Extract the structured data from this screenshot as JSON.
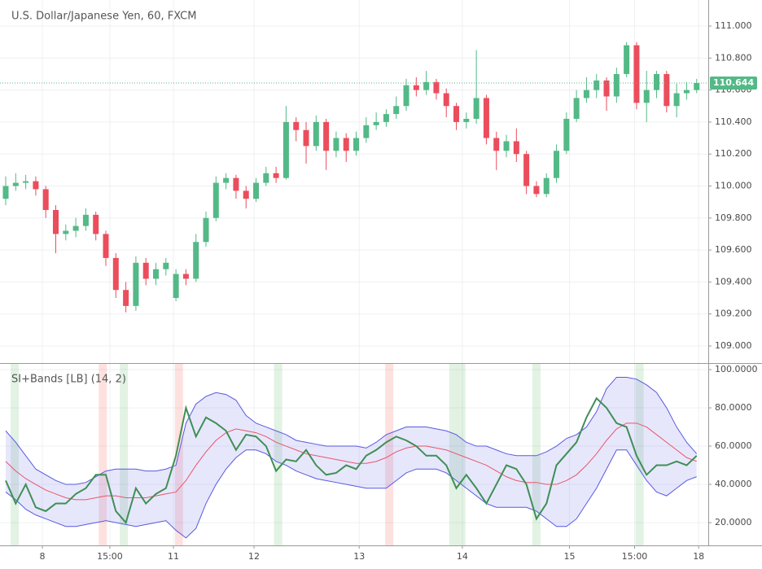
{
  "chart_data": [
    {
      "type": "candlestick",
      "title": "U.S. Dollar/Japanese Yen, 60, FXCM",
      "up_color": "#53b987",
      "down_color": "#eb4d5c",
      "ylim": [
        108.893,
        111.163
      ],
      "yticks": [
        {
          "value": 109,
          "label": "109.000"
        },
        {
          "value": 109.2,
          "label": "109.200"
        },
        {
          "value": 109.4,
          "label": "109.400"
        },
        {
          "value": 109.6,
          "label": "109.600"
        },
        {
          "value": 109.8,
          "label": "109.800"
        },
        {
          "value": 110,
          "label": "110.000"
        },
        {
          "value": 110.2,
          "label": "110.200"
        },
        {
          "value": 110.4,
          "label": "110.400"
        },
        {
          "value": 110.6,
          "label": "110.600"
        },
        {
          "value": 110.8,
          "label": "110.800"
        },
        {
          "value": 111,
          "label": "111.000"
        }
      ],
      "grid": true,
      "last": {
        "value": 110.644,
        "label": "110.644",
        "color": "#53b987"
      },
      "open": [
        109.92,
        110.0,
        110.02,
        110.03,
        109.98,
        109.85,
        109.7,
        109.72,
        109.75,
        109.82,
        109.7,
        109.55,
        109.35,
        109.25,
        109.52,
        109.42,
        109.48,
        109.3,
        109.45,
        109.42,
        109.65,
        109.8,
        110.02,
        110.05,
        109.97,
        109.92,
        110.02,
        110.08,
        110.05,
        110.4,
        110.35,
        110.25,
        110.4,
        110.22,
        110.3,
        110.22,
        110.3,
        110.38,
        110.4,
        110.45,
        110.5,
        110.63,
        110.6,
        110.65,
        110.58,
        110.5,
        110.4,
        110.42,
        110.55,
        110.3,
        110.22,
        110.28,
        110.2,
        110.0,
        109.95,
        110.05,
        110.22,
        110.42,
        110.55,
        110.6,
        110.66,
        110.56,
        110.7,
        110.88,
        110.52,
        110.6,
        110.7,
        110.5,
        110.58,
        110.6
      ],
      "high": [
        110.06,
        110.08,
        110.07,
        110.06,
        110.0,
        109.88,
        109.76,
        109.8,
        109.86,
        109.84,
        109.72,
        109.58,
        109.4,
        109.56,
        109.55,
        109.52,
        109.55,
        109.48,
        109.48,
        109.7,
        109.84,
        110.06,
        110.08,
        110.07,
        110.0,
        110.05,
        110.12,
        110.12,
        110.5,
        110.43,
        110.4,
        110.44,
        110.42,
        110.34,
        110.33,
        110.34,
        110.43,
        110.46,
        110.48,
        110.56,
        110.67,
        110.68,
        110.72,
        110.67,
        110.61,
        110.52,
        110.46,
        110.85,
        110.57,
        110.34,
        110.32,
        110.36,
        110.22,
        110.03,
        110.08,
        110.26,
        110.46,
        110.6,
        110.68,
        110.7,
        110.68,
        110.74,
        110.9,
        110.9,
        110.72,
        110.72,
        110.72,
        110.64,
        110.65,
        110.67
      ],
      "low": [
        109.88,
        109.97,
        109.98,
        109.94,
        109.8,
        109.58,
        109.66,
        109.68,
        109.72,
        109.66,
        109.5,
        109.3,
        109.21,
        109.22,
        109.38,
        109.38,
        109.44,
        109.28,
        109.38,
        109.4,
        109.62,
        109.78,
        109.98,
        109.92,
        109.86,
        109.9,
        110.0,
        110.02,
        110.04,
        110.28,
        110.14,
        110.22,
        110.1,
        110.18,
        110.15,
        110.19,
        110.27,
        110.35,
        110.37,
        110.42,
        110.47,
        110.56,
        110.57,
        110.54,
        110.43,
        110.35,
        110.36,
        110.39,
        110.26,
        110.1,
        110.18,
        110.15,
        109.95,
        109.93,
        109.93,
        110.02,
        110.2,
        110.4,
        110.52,
        110.55,
        110.47,
        110.52,
        110.68,
        110.48,
        110.4,
        110.55,
        110.46,
        110.43,
        110.54,
        110.58
      ],
      "close": [
        110.0,
        110.02,
        110.03,
        109.98,
        109.85,
        109.7,
        109.72,
        109.75,
        109.82,
        109.7,
        109.55,
        109.35,
        109.25,
        109.52,
        109.42,
        109.48,
        109.52,
        109.45,
        109.42,
        109.65,
        109.8,
        110.02,
        110.05,
        109.97,
        109.92,
        110.02,
        110.08,
        110.05,
        110.4,
        110.35,
        110.25,
        110.4,
        110.22,
        110.3,
        110.22,
        110.3,
        110.38,
        110.4,
        110.45,
        110.5,
        110.63,
        110.6,
        110.65,
        110.58,
        110.5,
        110.4,
        110.42,
        110.55,
        110.3,
        110.22,
        110.28,
        110.2,
        110.0,
        109.95,
        110.05,
        110.22,
        110.42,
        110.55,
        110.6,
        110.66,
        110.56,
        110.7,
        110.88,
        110.52,
        110.6,
        110.7,
        110.5,
        110.58,
        110.6,
        110.644
      ]
    },
    {
      "type": "bands",
      "title": "SI+Bands [LB] (14, 2)",
      "xlim": [
        -0.57,
        70.16
      ],
      "xticks": [
        {
          "value": 3.66,
          "label": "8"
        },
        {
          "value": 10.4,
          "label": "15:00"
        },
        {
          "value": 16.75,
          "label": "11"
        },
        {
          "value": 24.8,
          "label": "12"
        },
        {
          "value": 35.3,
          "label": "13"
        },
        {
          "value": 45.6,
          "label": "14"
        },
        {
          "value": 56.3,
          "label": "15"
        },
        {
          "value": 62.8,
          "label": "15:00"
        },
        {
          "value": 69.2,
          "label": "18"
        }
      ],
      "ylim": [
        8.1,
        103
      ],
      "yticks": [
        {
          "value": 20,
          "label": "20.0000"
        },
        {
          "value": 40,
          "label": "40.0000"
        },
        {
          "value": 60,
          "label": "60.0000"
        },
        {
          "value": 80,
          "label": "80.0000"
        },
        {
          "value": 100,
          "label": "100.0000"
        }
      ],
      "grid": true,
      "band_fill": "rgba(110,110,235,0.17)",
      "highlights": [
        {
          "x": 0.9,
          "color": "rgba(76,175,80,0.16)"
        },
        {
          "x": 9.7,
          "color": "rgba(244,67,54,0.16)"
        },
        {
          "x": 11.8,
          "color": "rgba(76,175,80,0.16)"
        },
        {
          "x": 17.3,
          "color": "rgba(244,67,54,0.16)"
        },
        {
          "x": 27.2,
          "color": "rgba(76,175,80,0.16)"
        },
        {
          "x": 38.3,
          "color": "rgba(244,67,54,0.16)"
        },
        {
          "x": 44.7,
          "color": "rgba(76,175,80,0.16)"
        },
        {
          "x": 45.5,
          "color": "rgba(76,175,80,0.16)"
        },
        {
          "x": 53,
          "color": "rgba(76,175,80,0.16)"
        },
        {
          "x": 63.3,
          "color": "rgba(76,175,80,0.16)"
        }
      ],
      "series": [
        {
          "color": "#5959e0",
          "values": [
            68,
            62,
            55,
            48,
            45,
            42,
            40,
            40,
            41,
            44,
            47,
            48,
            48,
            48,
            47,
            47,
            48,
            50,
            72,
            82,
            86,
            88,
            87,
            84,
            76,
            72,
            70,
            68,
            66,
            63,
            62,
            61,
            60,
            60,
            60,
            60,
            59,
            62,
            66,
            68,
            70,
            70,
            70,
            69,
            68,
            66,
            62,
            60,
            60,
            58,
            56,
            55,
            55,
            55,
            57,
            60,
            64,
            66,
            70,
            78,
            90,
            96,
            96,
            95,
            92,
            88,
            80,
            70,
            62,
            56
          ]
        },
        {
          "color": "#5959e0",
          "values": [
            36,
            32,
            27,
            24,
            22,
            20,
            18,
            18,
            19,
            20,
            21,
            20,
            19,
            18,
            19,
            20,
            21,
            16,
            12,
            17,
            30,
            40,
            48,
            54,
            58,
            58,
            56,
            52,
            50,
            47,
            45,
            43,
            42,
            41,
            40,
            39,
            38,
            38,
            38,
            42,
            46,
            48,
            48,
            48,
            46,
            42,
            38,
            34,
            30,
            28,
            28,
            28,
            28,
            26,
            22,
            18,
            18,
            22,
            30,
            38,
            48,
            58,
            58,
            50,
            42,
            36,
            34,
            38,
            42,
            44
          ]
        },
        {
          "color": "#e8566a",
          "values": [
            52,
            47,
            43,
            40,
            37,
            35,
            33,
            32,
            32,
            33,
            34,
            34,
            33,
            33,
            33,
            34,
            35,
            36,
            42,
            50,
            57,
            63,
            67,
            69,
            68,
            67,
            65,
            62,
            60,
            58,
            56,
            55,
            54,
            53,
            52,
            51,
            51,
            52,
            54,
            57,
            59,
            60,
            60,
            59,
            58,
            56,
            54,
            52,
            50,
            47,
            44,
            42,
            41,
            41,
            40,
            40,
            42,
            45,
            50,
            56,
            63,
            69,
            72,
            72,
            70,
            66,
            62,
            58,
            54,
            52
          ]
        },
        {
          "color": "#3f8f55",
          "values": [
            42,
            30,
            40,
            28,
            26,
            30,
            30,
            35,
            38,
            45,
            45,
            26,
            20,
            38,
            30,
            35,
            38,
            55,
            80,
            65,
            75,
            72,
            68,
            58,
            66,
            65,
            60,
            47,
            53,
            52,
            58,
            50,
            45,
            46,
            50,
            48,
            55,
            58,
            62,
            65,
            63,
            60,
            55,
            55,
            50,
            38,
            45,
            38,
            30,
            40,
            50,
            48,
            40,
            22,
            30,
            50,
            56,
            62,
            75,
            85,
            80,
            72,
            70,
            55,
            45,
            50,
            50,
            52,
            50,
            55
          ]
        }
      ]
    }
  ]
}
